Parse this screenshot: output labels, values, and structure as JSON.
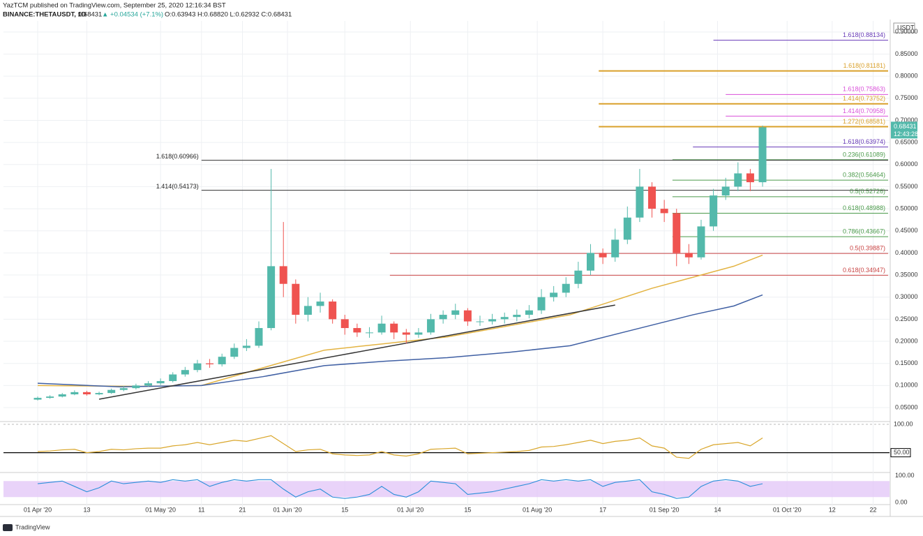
{
  "header": {
    "publisher": "YazTCM published on TradingView.com, September 25, 2020 12:16:34 BST",
    "symbol": "BINANCE:THETAUSDT, 1D",
    "last": "0.68431",
    "change": "▲ +0.04534 (+7.1%)",
    "ohlc": "O:0.63943 H:0.68820 L:0.62932 C:0.68431",
    "currency": "USDT",
    "brand": "TradingView"
  },
  "chart_data": {
    "type": "candlestick",
    "up_color": "#53b9ab",
    "down_color": "#ef5350",
    "grid": true,
    "xlim": [
      -8.35,
      208
    ],
    "ylim": [
      0.02,
      0.925
    ],
    "xticks": [
      {
        "value": 0,
        "label": "01 Apr '20"
      },
      {
        "value": 12,
        "label": "13"
      },
      {
        "value": 30,
        "label": "01 May '20"
      },
      {
        "value": 40,
        "label": "11"
      },
      {
        "value": 50,
        "label": "21"
      },
      {
        "value": 61,
        "label": "01 Jun '20"
      },
      {
        "value": 75,
        "label": "15"
      },
      {
        "value": 91,
        "label": "01 Jul '20"
      },
      {
        "value": 105,
        "label": "15"
      },
      {
        "value": 122,
        "label": "01 Aug '20"
      },
      {
        "value": 138,
        "label": "17"
      },
      {
        "value": 153,
        "label": "01 Sep '20"
      },
      {
        "value": 166,
        "label": "14"
      },
      {
        "value": 183,
        "label": "01 Oct '20"
      },
      {
        "value": 194,
        "label": "12"
      },
      {
        "value": 204,
        "label": "22"
      }
    ],
    "yticks": [
      {
        "value": 0.05,
        "label": "0.05000"
      },
      {
        "value": 0.1,
        "label": "0.10000"
      },
      {
        "value": 0.15,
        "label": "0.15000"
      },
      {
        "value": 0.2,
        "label": "0.20000"
      },
      {
        "value": 0.25,
        "label": "0.25000"
      },
      {
        "value": 0.3,
        "label": "0.30000"
      },
      {
        "value": 0.35,
        "label": "0.35000"
      },
      {
        "value": 0.4,
        "label": "0.40000"
      },
      {
        "value": 0.45,
        "label": "0.45000"
      },
      {
        "value": 0.5,
        "label": "0.50000"
      },
      {
        "value": 0.55,
        "label": "0.55000"
      },
      {
        "value": 0.6,
        "label": "0.60000"
      },
      {
        "value": 0.65,
        "label": "0.65000"
      },
      {
        "value": 0.7,
        "label": "0.70000"
      },
      {
        "value": 0.75,
        "label": "0.75000"
      },
      {
        "value": 0.8,
        "label": "0.80000"
      },
      {
        "value": 0.85,
        "label": "0.85000"
      },
      {
        "value": 0.9,
        "label": "0.90000"
      }
    ],
    "x": [
      0,
      3,
      6,
      9,
      12,
      15,
      18,
      21,
      24,
      27,
      30,
      33,
      36,
      39,
      42,
      45,
      48,
      51,
      54,
      57,
      60,
      63,
      66,
      69,
      72,
      75,
      78,
      81,
      84,
      87,
      90,
      93,
      96,
      99,
      102,
      105,
      108,
      111,
      114,
      117,
      120,
      123,
      126,
      129,
      132,
      135,
      138,
      141,
      144,
      147,
      150,
      153,
      156,
      159,
      162,
      165,
      168,
      171,
      174,
      177
    ],
    "open": [
      0.068,
      0.072,
      0.075,
      0.08,
      0.085,
      0.08,
      0.083,
      0.09,
      0.094,
      0.1,
      0.105,
      0.11,
      0.125,
      0.135,
      0.15,
      0.148,
      0.165,
      0.185,
      0.19,
      0.23,
      0.37,
      0.33,
      0.26,
      0.28,
      0.29,
      0.25,
      0.23,
      0.22,
      0.22,
      0.24,
      0.22,
      0.215,
      0.22,
      0.25,
      0.26,
      0.27,
      0.245,
      0.245,
      0.25,
      0.255,
      0.26,
      0.27,
      0.3,
      0.31,
      0.33,
      0.36,
      0.4,
      0.39,
      0.43,
      0.48,
      0.55,
      0.5,
      0.49,
      0.4,
      0.39,
      0.46,
      0.53,
      0.55,
      0.58,
      0.56
    ],
    "high": [
      0.075,
      0.078,
      0.083,
      0.089,
      0.088,
      0.086,
      0.093,
      0.098,
      0.104,
      0.11,
      0.116,
      0.13,
      0.142,
      0.158,
      0.16,
      0.172,
      0.195,
      0.205,
      0.245,
      0.59,
      0.47,
      0.34,
      0.3,
      0.31,
      0.295,
      0.26,
      0.24,
      0.232,
      0.258,
      0.245,
      0.228,
      0.23,
      0.262,
      0.27,
      0.285,
      0.275,
      0.258,
      0.262,
      0.265,
      0.272,
      0.282,
      0.318,
      0.325,
      0.345,
      0.38,
      0.42,
      0.41,
      0.455,
      0.505,
      0.59,
      0.56,
      0.52,
      0.5,
      0.42,
      0.475,
      0.545,
      0.57,
      0.605,
      0.59,
      0.6882
    ],
    "low": [
      0.066,
      0.07,
      0.073,
      0.078,
      0.077,
      0.078,
      0.081,
      0.087,
      0.091,
      0.097,
      0.101,
      0.107,
      0.12,
      0.13,
      0.14,
      0.143,
      0.16,
      0.178,
      0.185,
      0.225,
      0.3,
      0.24,
      0.245,
      0.265,
      0.24,
      0.215,
      0.21,
      0.208,
      0.215,
      0.205,
      0.195,
      0.208,
      0.215,
      0.24,
      0.25,
      0.235,
      0.235,
      0.238,
      0.24,
      0.245,
      0.252,
      0.262,
      0.29,
      0.3,
      0.32,
      0.35,
      0.375,
      0.38,
      0.42,
      0.47,
      0.48,
      0.47,
      0.37,
      0.375,
      0.385,
      0.45,
      0.52,
      0.54,
      0.54,
      0.55
    ],
    "close": [
      0.072,
      0.075,
      0.08,
      0.085,
      0.08,
      0.083,
      0.09,
      0.094,
      0.1,
      0.105,
      0.11,
      0.125,
      0.135,
      0.15,
      0.148,
      0.165,
      0.185,
      0.19,
      0.23,
      0.37,
      0.33,
      0.26,
      0.28,
      0.29,
      0.25,
      0.23,
      0.22,
      0.22,
      0.24,
      0.22,
      0.215,
      0.22,
      0.25,
      0.26,
      0.27,
      0.245,
      0.245,
      0.25,
      0.255,
      0.26,
      0.27,
      0.3,
      0.31,
      0.33,
      0.36,
      0.4,
      0.39,
      0.43,
      0.48,
      0.55,
      0.5,
      0.49,
      0.4,
      0.39,
      0.46,
      0.53,
      0.55,
      0.58,
      0.56,
      0.68431
    ],
    "lines": [
      {
        "color": "#e3b341",
        "x": [
          0,
          25,
          40,
          55,
          70,
          85,
          100,
          115,
          130,
          140,
          150,
          160,
          170,
          177
        ],
        "values": [
          0.1,
          0.098,
          0.1,
          0.14,
          0.18,
          0.195,
          0.21,
          0.235,
          0.26,
          0.29,
          0.32,
          0.345,
          0.37,
          0.395
        ]
      },
      {
        "color": "#3f5fa3",
        "x": [
          0,
          20,
          40,
          55,
          70,
          85,
          100,
          115,
          130,
          145,
          160,
          170,
          177
        ],
        "values": [
          0.105,
          0.097,
          0.1,
          0.12,
          0.145,
          0.155,
          0.163,
          0.175,
          0.19,
          0.225,
          0.26,
          0.28,
          0.305
        ]
      },
      {
        "color": "#333333",
        "x": [
          15,
          141
        ],
        "values": [
          0.069,
          0.282
        ]
      }
    ],
    "levels": [
      {
        "label": "1.618(0.88134)",
        "value": 0.88134,
        "from": 165,
        "color": "#673ab7"
      },
      {
        "label": "1.618(0.81181)",
        "value": 0.81181,
        "from": 137,
        "color": "#d9a02a",
        "thick": true
      },
      {
        "label": "1.618(0.75863)",
        "value": 0.75863,
        "from": 168,
        "color": "#d94fd9"
      },
      {
        "label": "1.414(0.73752)",
        "value": 0.73752,
        "from": 137,
        "color": "#d9a02a",
        "thick": true
      },
      {
        "label": "1.414(0.70958)",
        "value": 0.70958,
        "from": 168,
        "color": "#d94fd9"
      },
      {
        "label": "1.272(0.68581)",
        "value": 0.68581,
        "from": 137,
        "color": "#d9a02a",
        "thick": true
      },
      {
        "label": "1.618(0.63974)",
        "value": 0.63974,
        "from": 160,
        "color": "#673ab7"
      },
      {
        "label": "0.236(0.61089)",
        "value": 0.61089,
        "from": 155,
        "color": "#4a9a4a"
      },
      {
        "label": "1.618(0.60966)",
        "value": 0.60966,
        "from": 40,
        "color": "#333333"
      },
      {
        "label": "0.382(0.56464)",
        "value": 0.56464,
        "from": 155,
        "color": "#4a9a4a"
      },
      {
        "label": "1.414(0.54173)",
        "value": 0.54173,
        "from": 40,
        "color": "#333333"
      },
      {
        "label": "0.5(0.52726)",
        "value": 0.52726,
        "from": 155,
        "color": "#4a9a4a"
      },
      {
        "label": "0.618(0.48988)",
        "value": 0.48988,
        "from": 155,
        "color": "#4a9a4a"
      },
      {
        "label": "0.786(0.43667)",
        "value": 0.43667,
        "from": 155,
        "color": "#4a9a4a"
      },
      {
        "label": "0.5(0.39887)",
        "value": 0.39887,
        "from": 86,
        "color": "#c94444"
      },
      {
        "label": "0.618(0.34947)",
        "value": 0.34947,
        "from": 86,
        "color": "#c94444"
      }
    ],
    "price_tag": {
      "value": 0.68431,
      "countdown": "12:43:28"
    },
    "rsi": {
      "color": "#d9a62a",
      "ylim": [
        15,
        105
      ],
      "yticks": [
        {
          "value": 100,
          "label": "100.00"
        },
        {
          "value": 50,
          "label": "50.00"
        }
      ],
      "values": [
        52,
        53,
        55,
        56,
        50,
        52,
        56,
        55,
        57,
        58,
        58,
        62,
        64,
        68,
        64,
        68,
        72,
        70,
        75,
        80,
        66,
        52,
        55,
        56,
        48,
        46,
        45,
        46,
        52,
        46,
        44,
        48,
        56,
        57,
        58,
        48,
        49,
        50,
        51,
        52,
        54,
        60,
        61,
        64,
        68,
        72,
        66,
        70,
        72,
        76,
        62,
        58,
        42,
        40,
        56,
        64,
        66,
        68,
        62,
        76
      ]
    },
    "stoch": {
      "color": "#2a8fd9",
      "band_color": "#e3c8f7",
      "band": [
        20,
        80
      ],
      "ylim": [
        -8,
        112
      ],
      "yticks": [
        {
          "value": 100,
          "label": "100.00"
        },
        {
          "value": 0,
          "label": "0.00"
        }
      ],
      "values": [
        70,
        75,
        80,
        60,
        40,
        55,
        80,
        70,
        75,
        80,
        75,
        85,
        80,
        85,
        60,
        75,
        85,
        80,
        85,
        85,
        50,
        20,
        40,
        50,
        20,
        15,
        20,
        30,
        60,
        30,
        20,
        40,
        80,
        75,
        70,
        30,
        35,
        40,
        50,
        60,
        70,
        85,
        80,
        85,
        80,
        85,
        60,
        75,
        80,
        85,
        40,
        30,
        15,
        20,
        60,
        80,
        85,
        80,
        60,
        70
      ]
    }
  }
}
